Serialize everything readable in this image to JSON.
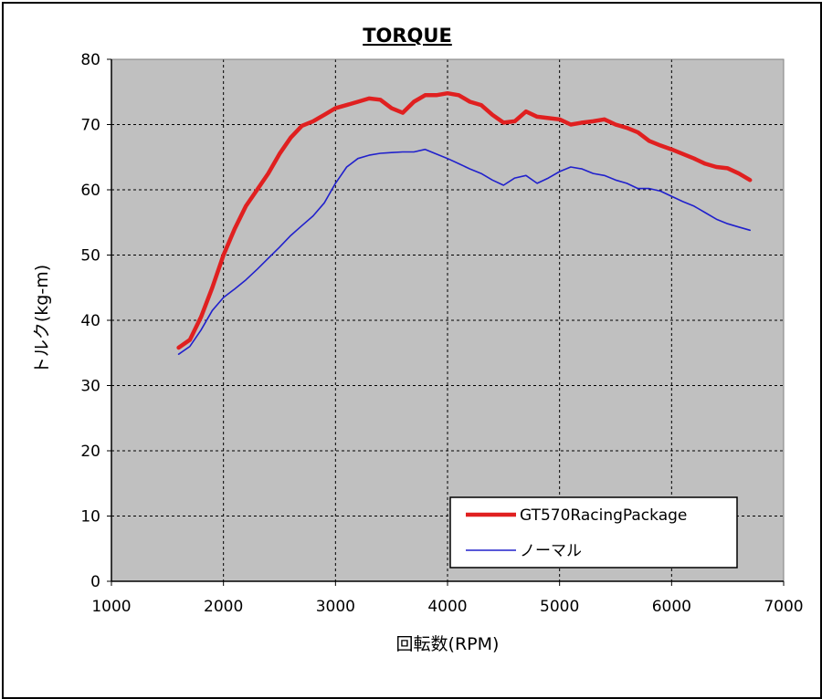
{
  "chart_data": {
    "type": "line",
    "title": "TORQUE",
    "xlabel": "回転数(RPM)",
    "ylabel": "トルク(kg-m)",
    "xlim": [
      1000,
      7000
    ],
    "ylim": [
      0,
      80
    ],
    "x_ticks": [
      "1000",
      "2000",
      "3000",
      "4000",
      "5000",
      "6000",
      "7000"
    ],
    "y_ticks": [
      "0",
      "10",
      "20",
      "30",
      "40",
      "50",
      "60",
      "70",
      "80"
    ],
    "grid": true,
    "legend_position": "bottom-right",
    "plot_background": "#c0c0c0",
    "series": [
      {
        "name": "GT570RacingPackage",
        "color": "#e02020",
        "points": [
          [
            1600,
            35.8
          ],
          [
            1700,
            37
          ],
          [
            1800,
            40.5
          ],
          [
            1900,
            45
          ],
          [
            2000,
            50
          ],
          [
            2100,
            54
          ],
          [
            2200,
            57.5
          ],
          [
            2300,
            60
          ],
          [
            2400,
            62.5
          ],
          [
            2500,
            65.5
          ],
          [
            2600,
            68
          ],
          [
            2700,
            69.8
          ],
          [
            2800,
            70.5
          ],
          [
            2900,
            71.5
          ],
          [
            3000,
            72.5
          ],
          [
            3100,
            73
          ],
          [
            3200,
            73.5
          ],
          [
            3300,
            74
          ],
          [
            3400,
            73.8
          ],
          [
            3500,
            72.5
          ],
          [
            3600,
            71.8
          ],
          [
            3700,
            73.5
          ],
          [
            3800,
            74.5
          ],
          [
            3900,
            74.5
          ],
          [
            4000,
            74.8
          ],
          [
            4100,
            74.5
          ],
          [
            4200,
            73.5
          ],
          [
            4300,
            73
          ],
          [
            4400,
            71.5
          ],
          [
            4500,
            70.3
          ],
          [
            4600,
            70.5
          ],
          [
            4700,
            72
          ],
          [
            4800,
            71.2
          ],
          [
            4900,
            71
          ],
          [
            5000,
            70.8
          ],
          [
            5100,
            70
          ],
          [
            5200,
            70.3
          ],
          [
            5300,
            70.5
          ],
          [
            5400,
            70.8
          ],
          [
            5500,
            70
          ],
          [
            5600,
            69.5
          ],
          [
            5700,
            68.8
          ],
          [
            5800,
            67.5
          ],
          [
            5900,
            66.8
          ],
          [
            6000,
            66.2
          ],
          [
            6100,
            65.5
          ],
          [
            6200,
            64.8
          ],
          [
            6300,
            64
          ],
          [
            6400,
            63.5
          ],
          [
            6500,
            63.3
          ],
          [
            6600,
            62.5
          ],
          [
            6700,
            61.5
          ]
        ]
      },
      {
        "name": "ノーマル",
        "color": "#2020cc",
        "points": [
          [
            1600,
            34.8
          ],
          [
            1700,
            36
          ],
          [
            1800,
            38.5
          ],
          [
            1900,
            41.5
          ],
          [
            2000,
            43.5
          ],
          [
            2100,
            44.8
          ],
          [
            2200,
            46.2
          ],
          [
            2300,
            47.8
          ],
          [
            2400,
            49.5
          ],
          [
            2500,
            51.2
          ],
          [
            2600,
            53
          ],
          [
            2700,
            54.5
          ],
          [
            2800,
            56
          ],
          [
            2900,
            58
          ],
          [
            3000,
            61
          ],
          [
            3100,
            63.5
          ],
          [
            3200,
            64.8
          ],
          [
            3300,
            65.3
          ],
          [
            3400,
            65.6
          ],
          [
            3500,
            65.7
          ],
          [
            3600,
            65.8
          ],
          [
            3700,
            65.8
          ],
          [
            3800,
            66.2
          ],
          [
            3900,
            65.5
          ],
          [
            4000,
            64.8
          ],
          [
            4100,
            64
          ],
          [
            4200,
            63.2
          ],
          [
            4300,
            62.5
          ],
          [
            4400,
            61.5
          ],
          [
            4500,
            60.7
          ],
          [
            4600,
            61.8
          ],
          [
            4700,
            62.2
          ],
          [
            4800,
            61
          ],
          [
            4900,
            61.8
          ],
          [
            5000,
            62.8
          ],
          [
            5100,
            63.5
          ],
          [
            5200,
            63.2
          ],
          [
            5300,
            62.5
          ],
          [
            5400,
            62.2
          ],
          [
            5500,
            61.5
          ],
          [
            5600,
            61
          ],
          [
            5700,
            60.2
          ],
          [
            5800,
            60.2
          ],
          [
            5900,
            59.8
          ],
          [
            6000,
            59
          ],
          [
            6100,
            58.2
          ],
          [
            6200,
            57.5
          ],
          [
            6300,
            56.5
          ],
          [
            6400,
            55.5
          ],
          [
            6500,
            54.8
          ],
          [
            6600,
            54.3
          ],
          [
            6700,
            53.8
          ]
        ]
      }
    ]
  }
}
